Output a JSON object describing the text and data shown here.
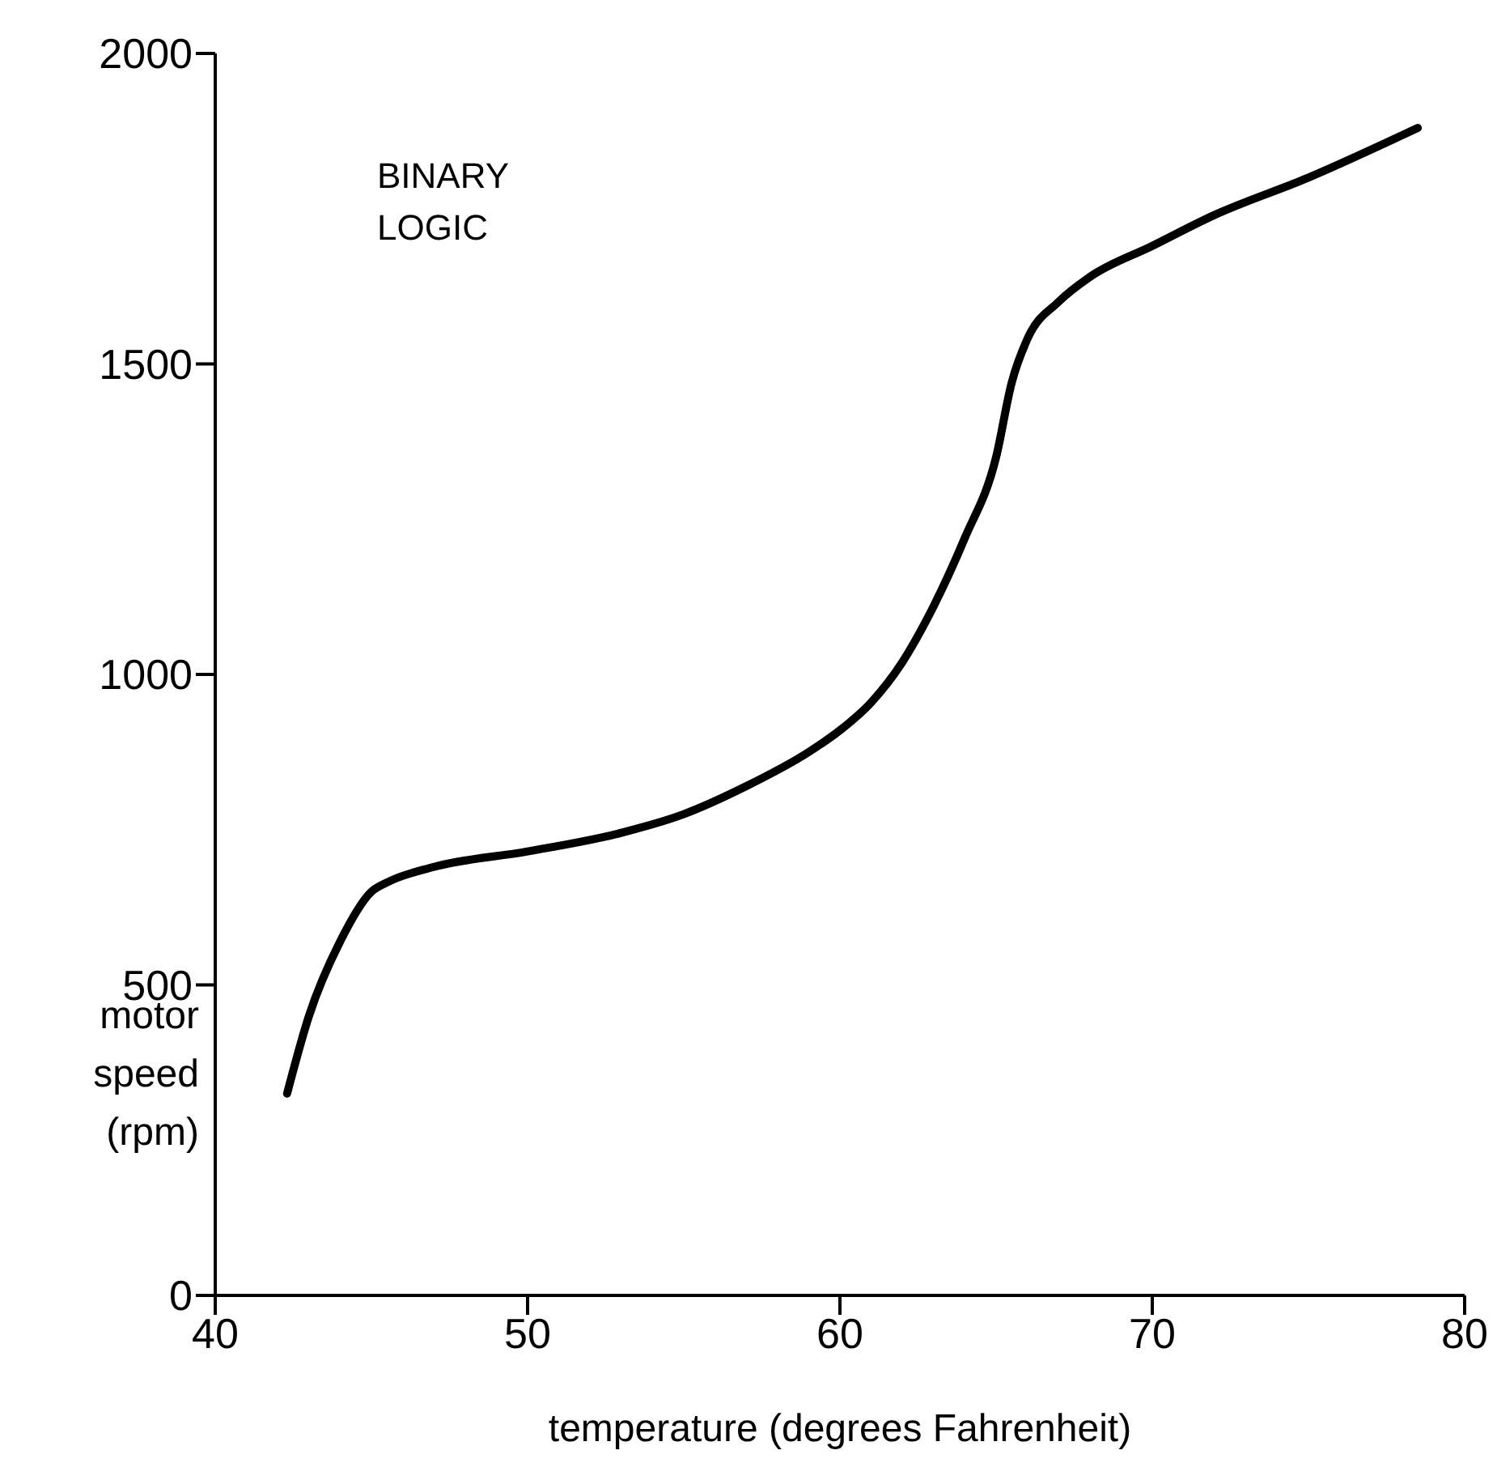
{
  "chart_data": {
    "type": "line",
    "xlabel": "temperature  (degrees  Fahrenheit)",
    "ylabel": "motor speed (rpm)",
    "annotations": [
      "BINARY LOGIC"
    ],
    "xlim": [
      40,
      80
    ],
    "xticks": [
      40,
      50,
      60,
      70,
      80
    ],
    "ylim": [
      0,
      2000
    ],
    "yticks": [
      0,
      500,
      1000,
      1500,
      2000
    ],
    "grid": false,
    "legend": false,
    "marker": "none",
    "line_style": "solid",
    "series": [
      {
        "color": "#000000",
        "x": [
          42.3,
          43,
          44,
          45,
          45.5,
          47,
          50,
          53,
          55,
          57,
          59,
          60,
          61,
          62,
          63,
          64,
          65,
          65.5,
          66,
          67,
          68,
          70,
          72,
          75,
          78.5
        ],
        "values": [
          325,
          450,
          570,
          650,
          665,
          690,
          715,
          745,
          775,
          820,
          875,
          910,
          955,
          1020,
          1110,
          1220,
          1350,
          1470,
          1540,
          1600,
          1640,
          1690,
          1740,
          1800,
          1880
        ]
      }
    ]
  }
}
